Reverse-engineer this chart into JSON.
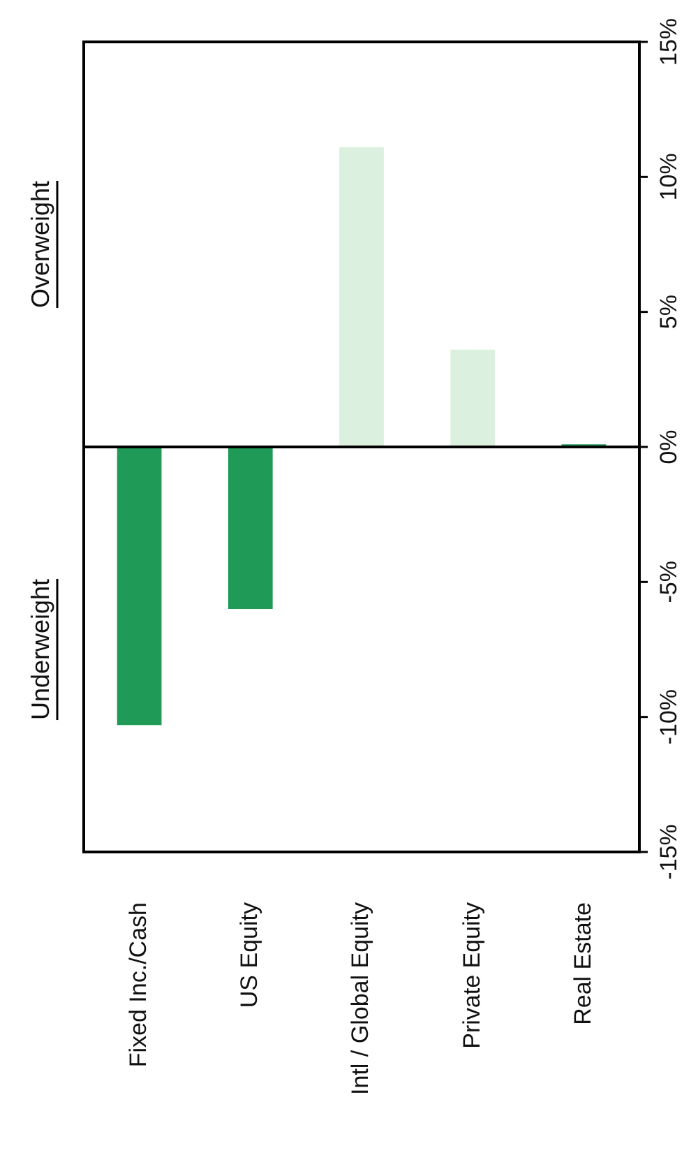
{
  "chart_data": {
    "type": "bar",
    "categories": [
      "Fixed Inc./Cash",
      "US Equity",
      "Intl / Global Equity",
      "Private Equity",
      "Real Estate"
    ],
    "values": [
      -10.3,
      -6.0,
      11.1,
      3.6,
      0.1
    ],
    "colors": [
      "#1f9a57",
      "#1f9a57",
      "#dcf0df",
      "#dcf0df",
      "#1f9a57"
    ],
    "ylim": [
      -15,
      15
    ],
    "yticks": [
      {
        "value": -15,
        "label": "-15%"
      },
      {
        "value": -10,
        "label": "-10%"
      },
      {
        "value": -5,
        "label": "-5%"
      },
      {
        "value": 0,
        "label": "0%"
      },
      {
        "value": 5,
        "label": "5%"
      },
      {
        "value": 10,
        "label": "10%"
      },
      {
        "value": 15,
        "label": "15%"
      }
    ],
    "annotations": [
      "Overweight",
      "Underweight"
    ],
    "ref_lines": [
      {
        "axis": "y",
        "value": 0,
        "color": "#000000"
      }
    ],
    "grid": false,
    "legend": false
  }
}
